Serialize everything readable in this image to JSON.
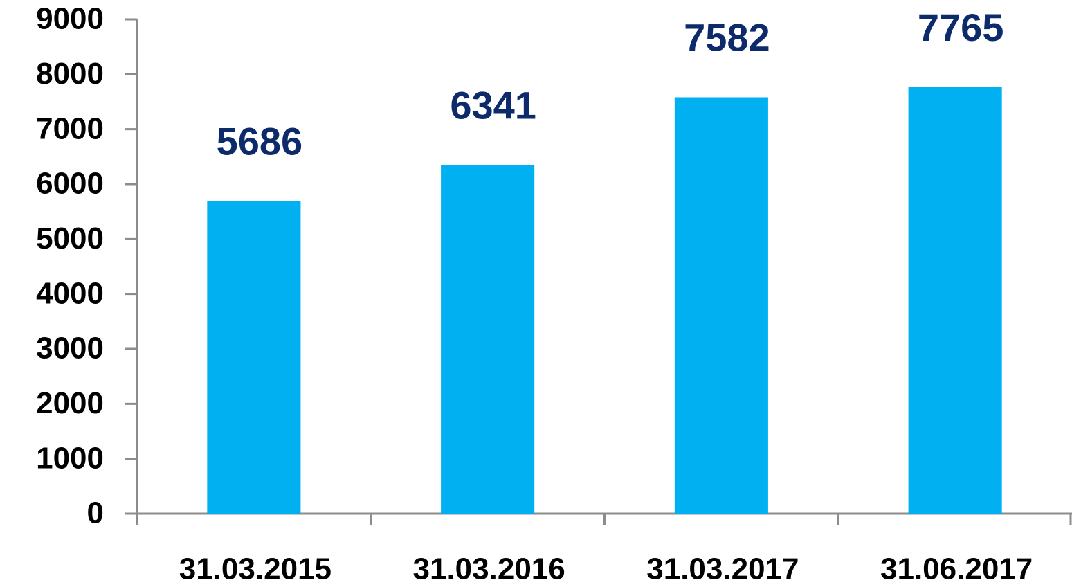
{
  "chart_data": {
    "type": "bar",
    "categories": [
      "31.03.2015",
      "31.03.2016",
      "31.03.2017",
      "31.06.2017"
    ],
    "values": [
      5686,
      6341,
      7582,
      7765
    ],
    "color": "#00b0f0",
    "ylim": [
      0,
      9000
    ],
    "yticks": [
      0,
      1000,
      2000,
      3000,
      4000,
      5000,
      6000,
      7000,
      8000,
      9000
    ],
    "grid": false
  }
}
